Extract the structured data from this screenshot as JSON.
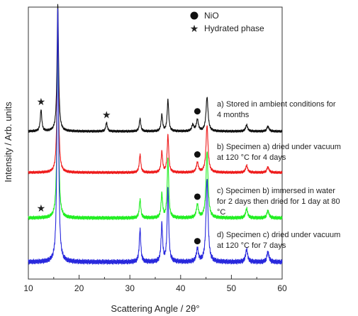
{
  "chart_data": {
    "type": "line",
    "xlabel": "Scattering Angle / 2θ°",
    "ylabel": "Intensity / Arb. units",
    "xlim": [
      10,
      60
    ],
    "xticks": [
      10,
      20,
      30,
      40,
      50,
      60
    ],
    "legend": {
      "placement": "top-right",
      "items": [
        {
          "marker": "circle",
          "label": "NiO"
        },
        {
          "marker": "star",
          "label": "Hydrated phase"
        }
      ]
    },
    "series": [
      {
        "color": "#111111",
        "annotation": [
          "a) Stored in ambient conditions for",
          "4 months"
        ],
        "peaks": [
          [
            12.5,
            0.17
          ],
          [
            15.8,
            1.0
          ],
          [
            25.4,
            0.07
          ],
          [
            32.0,
            0.1
          ],
          [
            36.3,
            0.13
          ],
          [
            37.5,
            0.25
          ],
          [
            42.4,
            0.05
          ],
          [
            43.3,
            0.09
          ],
          [
            45.2,
            0.27
          ],
          [
            53.0,
            0.05
          ],
          [
            57.2,
            0.04
          ]
        ],
        "markers": [
          {
            "x": 12.5,
            "shape": "star"
          },
          {
            "x": 25.4,
            "shape": "star"
          },
          {
            "x": 43.3,
            "shape": "circle"
          }
        ]
      },
      {
        "color": "#ee1c1c",
        "annotation": [
          "b) Specimen a) dried under vacuum",
          "at 120 °C for 4 days"
        ],
        "peaks": [
          [
            15.8,
            1.0
          ],
          [
            32.0,
            0.13
          ],
          [
            36.3,
            0.15
          ],
          [
            37.5,
            0.27
          ],
          [
            43.3,
            0.07
          ],
          [
            45.2,
            0.34
          ],
          [
            53.0,
            0.05
          ],
          [
            57.2,
            0.04
          ]
        ],
        "markers": [
          {
            "x": 43.3,
            "shape": "circle"
          }
        ]
      },
      {
        "color": "#22ee22",
        "annotation": [
          "c) Specimen b) immersed in water",
          "for 2 days then dried for 1 day at 80",
          "°C"
        ],
        "peaks": [
          [
            15.8,
            1.0
          ],
          [
            32.0,
            0.1
          ],
          [
            36.3,
            0.13
          ],
          [
            37.5,
            0.32
          ],
          [
            43.3,
            0.07
          ],
          [
            45.2,
            0.36
          ],
          [
            53.0,
            0.05
          ],
          [
            57.2,
            0.04
          ]
        ],
        "markers": [
          {
            "x": 12.5,
            "shape": "star"
          },
          {
            "x": 43.3,
            "shape": "circle"
          }
        ]
      },
      {
        "color": "#2828dd",
        "annotation": [
          "d) Specimen c) dried under vacuum",
          "at 120 °C for 7 days"
        ],
        "peaks": [
          [
            15.8,
            1.0
          ],
          [
            32.0,
            0.13
          ],
          [
            36.3,
            0.15
          ],
          [
            37.5,
            0.29
          ],
          [
            43.3,
            0.05
          ],
          [
            45.2,
            0.33
          ],
          [
            53.0,
            0.05
          ],
          [
            57.2,
            0.04
          ]
        ],
        "markers": [
          {
            "x": 43.3,
            "shape": "circle"
          }
        ]
      }
    ]
  }
}
